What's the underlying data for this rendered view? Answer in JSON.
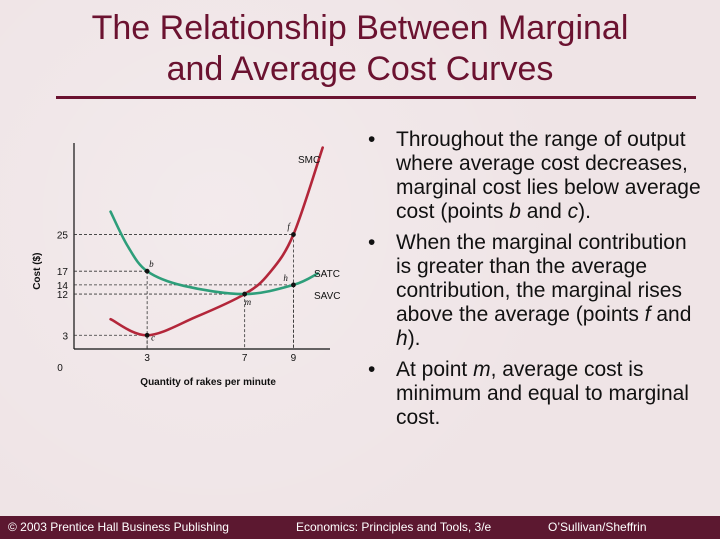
{
  "title": {
    "line1": "The Relationship Between Marginal",
    "line2": "and Average Cost Curves"
  },
  "chart_data": {
    "type": "line",
    "xlabel": "Quantity of rakes per minute",
    "ylabel": "Cost ($)",
    "origin_label": "0",
    "x_ticks": [
      "3",
      "7",
      "9"
    ],
    "y_ticks": [
      "25",
      "17",
      "14",
      "12",
      "3"
    ],
    "series": [
      {
        "name": "SMC",
        "color": "#b3263a",
        "points": [
          [
            1.5,
            6.5
          ],
          [
            3,
            3
          ],
          [
            5,
            7
          ],
          [
            7,
            12
          ],
          [
            8,
            16.5
          ],
          [
            9,
            25
          ],
          [
            10.2,
            44
          ]
        ]
      },
      {
        "name": "SATC",
        "color": "#2e9e7a",
        "points": [
          [
            1.5,
            30
          ],
          [
            2.2,
            22.5
          ],
          [
            3,
            17
          ],
          [
            4.5,
            13.8
          ],
          [
            7,
            12
          ],
          [
            9,
            14
          ],
          [
            10,
            16.5
          ]
        ]
      },
      {
        "name": "SAVC",
        "color": null,
        "points": []
      }
    ],
    "marked_points": [
      {
        "label": "b",
        "x": 3,
        "y": 17
      },
      {
        "label": "c",
        "x": 3,
        "y": 3
      },
      {
        "label": "m",
        "x": 7,
        "y": 12
      },
      {
        "label": "f",
        "x": 9,
        "y": 25
      },
      {
        "label": "h",
        "x": 9,
        "y": 14
      }
    ],
    "xlim": [
      0,
      10.5
    ],
    "ylim": [
      0,
      45
    ],
    "grid": false
  },
  "bullets": [
    {
      "t1": "Throughout the range of output where average cost decreases, marginal cost lies below average cost (points ",
      "e1": "b",
      "t2": " and ",
      "e2": "c",
      "t3": ")."
    },
    {
      "t1": "When the marginal contribution is greater than the average contribution, the marginal rises above the average (points ",
      "e1": "f",
      "t2": " and ",
      "e2": "h",
      "t3": ")."
    },
    {
      "t1": "At point ",
      "e1": "m",
      "t2": ", average cost is minimum and equal to marginal cost.",
      "e2": "",
      "t3": ""
    }
  ],
  "footer": {
    "left": "© 2003 Prentice Hall Business Publishing",
    "middle": "Economics: Principles and Tools, 3/e",
    "right": "O’Sullivan/Sheffrin"
  }
}
